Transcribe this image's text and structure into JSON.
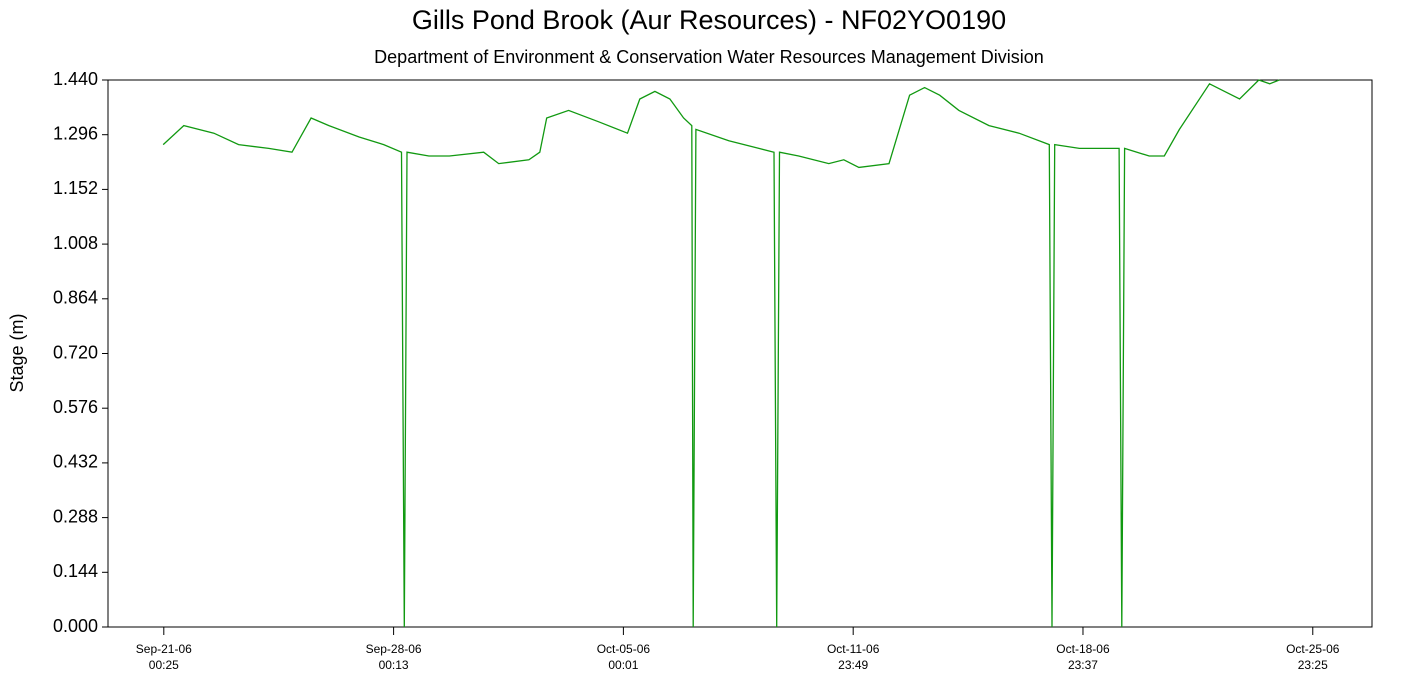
{
  "chart_data": {
    "type": "line",
    "title": "Gills Pond Brook (Aur Resources) - NF02YO0190",
    "subtitle": "Department of Environment & Conservation Water Resources Management Division",
    "y_label": "Stage (m)",
    "x": [
      "2006-09-21T00:00",
      "2006-09-21T15:00",
      "2006-09-22T13:00",
      "2006-09-23T07:00",
      "2006-09-24T05:00",
      "2006-09-24T22:00",
      "2006-09-25T12:00",
      "2006-09-26T01:00",
      "2006-09-26T23:00",
      "2006-09-27T17:00",
      "2006-09-28T06:00",
      "2006-09-28T08:00",
      "2006-09-28T10:00",
      "2006-09-29T02:00",
      "2006-09-29T17:00",
      "2006-09-30T18:00",
      "2006-10-01T05:00",
      "2006-10-02T03:00",
      "2006-10-02T11:00",
      "2006-10-02T16:00",
      "2006-10-03T08:00",
      "2006-10-04T06:00",
      "2006-10-05T03:00",
      "2006-10-05T12:00",
      "2006-10-05T23:00",
      "2006-10-06T10:00",
      "2006-10-06T20:00",
      "2006-10-07T02:00",
      "2006-10-07T03:00",
      "2006-10-07T05:00",
      "2006-10-08T05:00",
      "2006-10-09T03:00",
      "2006-10-09T14:00",
      "2006-10-09T16:00",
      "2006-10-09T18:00",
      "2006-10-10T08:00",
      "2006-10-11T06:00",
      "2006-10-11T17:00",
      "2006-10-12T04:00",
      "2006-10-13T02:00",
      "2006-10-13T17:00",
      "2006-10-14T04:00",
      "2006-10-14T15:00",
      "2006-10-15T05:00",
      "2006-10-16T03:00",
      "2006-10-17T01:00",
      "2006-10-17T23:00",
      "2006-10-18T01:00",
      "2006-10-18T03:00",
      "2006-10-18T21:00",
      "2006-10-19T12:00",
      "2006-10-20T02:00",
      "2006-10-20T04:00",
      "2006-10-20T06:00",
      "2006-10-21T00:00",
      "2006-10-21T11:00",
      "2006-10-21T22:00",
      "2006-10-22T20:00",
      "2006-10-23T07:00",
      "2006-10-23T18:00",
      "2006-10-24T08:00",
      "2006-10-24T16:00",
      "2006-10-24T23:00"
    ],
    "series": [
      {
        "name": "Stage",
        "color": "#119911",
        "values": [
          1.27,
          1.32,
          1.3,
          1.27,
          1.26,
          1.25,
          1.34,
          1.32,
          1.29,
          1.27,
          1.25,
          0,
          1.25,
          1.24,
          1.24,
          1.25,
          1.22,
          1.23,
          1.25,
          1.34,
          1.36,
          1.33,
          1.3,
          1.39,
          1.41,
          1.39,
          1.34,
          1.32,
          0,
          1.31,
          1.28,
          1.26,
          1.25,
          0,
          1.25,
          1.24,
          1.22,
          1.23,
          1.21,
          1.22,
          1.4,
          1.42,
          1.4,
          1.36,
          1.32,
          1.3,
          1.27,
          0,
          1.27,
          1.26,
          1.26,
          1.26,
          0,
          1.26,
          1.24,
          1.24,
          1.31,
          1.43,
          1.41,
          1.39,
          1.44,
          1.43,
          1.44
        ]
      }
    ],
    "xlim": [
      "2006-09-19T07:40",
      "2006-10-27T18:40"
    ],
    "xticks": [
      {
        "value": "2006-09-21T00:25",
        "label": "Sep-21-06\n00:25"
      },
      {
        "value": "2006-09-28T00:13",
        "label": "Sep-28-06\n00:13"
      },
      {
        "value": "2006-10-05T00:01",
        "label": "Oct-05-06\n00:01"
      },
      {
        "value": "2006-10-11T23:49",
        "label": "Oct-11-06\n23:49"
      },
      {
        "value": "2006-10-18T23:37",
        "label": "Oct-18-06\n23:37"
      },
      {
        "value": "2006-10-25T23:25",
        "label": "Oct-25-06\n23:25"
      }
    ],
    "ylim": [
      0,
      1.44
    ],
    "yticks": [
      {
        "value": 0,
        "label": "0.000"
      },
      {
        "value": 0.144,
        "label": "0.144"
      },
      {
        "value": 0.288,
        "label": "0.288"
      },
      {
        "value": 0.432,
        "label": "0.432"
      },
      {
        "value": 0.576,
        "label": "0.576"
      },
      {
        "value": 0.72,
        "label": "0.720"
      },
      {
        "value": 0.864,
        "label": "0.864"
      },
      {
        "value": 1.008,
        "label": "1.008"
      },
      {
        "value": 1.152,
        "label": "1.152"
      },
      {
        "value": 1.296,
        "label": "1.296"
      },
      {
        "value": 1.44,
        "label": "1.440"
      }
    ],
    "grid": false
  }
}
